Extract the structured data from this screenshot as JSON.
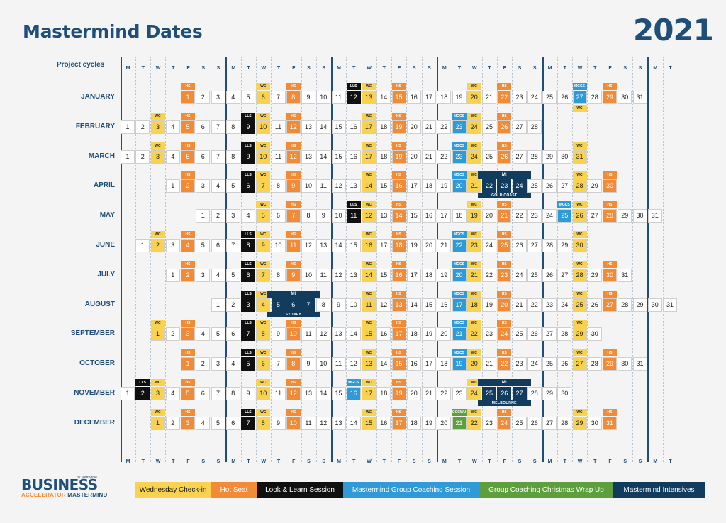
{
  "header": {
    "title": "Mastermind Dates",
    "year": "2021",
    "project_cycles_label": "Project cycles"
  },
  "day_letters": [
    "M",
    "T",
    "W",
    "T",
    "F",
    "S",
    "S"
  ],
  "months": [
    {
      "name": "JANUARY",
      "offset": 4,
      "days": 31,
      "marks": {
        "1": "hs",
        "6": "wc",
        "8": "hs",
        "12": "lls",
        "13": "wc",
        "15": "hs",
        "20": "wc",
        "22": "hs",
        "27": "mgcs",
        "29": "hs"
      },
      "extra_tags": [
        {
          "day": 27,
          "tag": "wc"
        }
      ],
      "mi": null
    },
    {
      "name": "FEBRUARY",
      "offset": 0,
      "days": 28,
      "marks": {
        "3": "wc",
        "5": "hs",
        "9": "lls",
        "10": "wc",
        "12": "hs",
        "17": "wc",
        "19": "hs",
        "23": "mgcs",
        "24": "wc",
        "26": "hs"
      },
      "mi": null
    },
    {
      "name": "MARCH",
      "offset": 0,
      "days": 31,
      "marks": {
        "3": "wc",
        "5": "hs",
        "9": "lls",
        "10": "wc",
        "12": "hs",
        "17": "wc",
        "19": "hs",
        "23": "mgcs",
        "24": "wc",
        "26": "hs",
        "31": "wc"
      },
      "mi": null
    },
    {
      "name": "APRIL",
      "offset": 3,
      "days": 30,
      "marks": {
        "2": "hs",
        "6": "lls",
        "7": "wc",
        "9": "hs",
        "14": "wc",
        "16": "hs",
        "20": "mgcs",
        "21": "wc",
        "28": "wc",
        "30": "hs"
      },
      "mi": {
        "start": 22,
        "end": 24,
        "label": "MI",
        "caption": "GOLD COAST"
      }
    },
    {
      "name": "MAY",
      "offset": 5,
      "days": 31,
      "marks": {
        "5": "wc",
        "7": "hs",
        "11": "lls",
        "12": "wc",
        "14": "hs",
        "19": "wc",
        "21": "hs",
        "25": "mgcs",
        "26": "wc",
        "28": "hs"
      },
      "mi": null
    },
    {
      "name": "JUNE",
      "offset": 1,
      "days": 30,
      "marks": {
        "2": "wc",
        "4": "hs",
        "8": "lls",
        "9": "wc",
        "11": "hs",
        "16": "wc",
        "18": "hs",
        "22": "mgcs",
        "23": "wc",
        "25": "hs",
        "30": "wc"
      },
      "mi": null
    },
    {
      "name": "JULY",
      "offset": 3,
      "days": 31,
      "marks": {
        "2": "hs",
        "6": "lls",
        "7": "wc",
        "9": "hs",
        "14": "wc",
        "16": "hs",
        "20": "mgcs",
        "21": "wc",
        "23": "hs",
        "28": "wc",
        "30": "hs"
      },
      "mi": null
    },
    {
      "name": "AUGUST",
      "offset": 6,
      "days": 31,
      "marks": {
        "3": "lls",
        "4": "wc",
        "11": "wc",
        "13": "hs",
        "17": "mgcs",
        "18": "wc",
        "20": "hs",
        "25": "wc",
        "27": "hs"
      },
      "mi": {
        "start": 5,
        "end": 7,
        "label": "MI",
        "caption": "SYDNEY"
      }
    },
    {
      "name": "SEPTEMBER",
      "offset": 2,
      "days": 30,
      "marks": {
        "1": "wc",
        "3": "hs",
        "7": "lls",
        "8": "wc",
        "10": "hs",
        "15": "wc",
        "17": "hs",
        "21": "mgcs",
        "22": "wc",
        "24": "hs",
        "29": "wc"
      },
      "mi": null
    },
    {
      "name": "OCTOBER",
      "offset": 4,
      "days": 31,
      "marks": {
        "1": "hs",
        "5": "lls",
        "6": "wc",
        "8": "hs",
        "13": "wc",
        "15": "hs",
        "19": "mgcs",
        "20": "wc",
        "22": "hs",
        "27": "wc",
        "29": "hs"
      },
      "mi": null
    },
    {
      "name": "NOVEMBER",
      "offset": 0,
      "days": 30,
      "marks": {
        "2": "lls",
        "3": "wc",
        "5": "hs",
        "10": "wc",
        "12": "hs",
        "16": "mgcs",
        "17": "wc",
        "19": "hs",
        "24": "wc"
      },
      "mi": {
        "start": 25,
        "end": 27,
        "label": "MI",
        "caption": "MELBOURNE"
      }
    },
    {
      "name": "DECEMBER",
      "offset": 2,
      "days": 31,
      "marks": {
        "1": "wc",
        "3": "hs",
        "7": "lls",
        "8": "wc",
        "10": "hs",
        "15": "wc",
        "17": "hs",
        "21": "gccwu",
        "22": "wc",
        "24": "hs",
        "29": "wc",
        "31": "hs"
      },
      "mi": null
    }
  ],
  "tag_labels": {
    "wc": "WC",
    "hs": "HS",
    "lls": "LLS",
    "mgcs": "MGCS",
    "gccwu": "GCCWU"
  },
  "legend": [
    {
      "key": "wc",
      "label": "Wednesday Check-in",
      "color": "#f9d24f",
      "text_color": "#1a1a1a"
    },
    {
      "key": "hs",
      "label": "Hot Seat",
      "color": "#f18b35",
      "text_color": "#ffffff"
    },
    {
      "key": "lls",
      "label": "Look & Learn Session",
      "color": "#101010",
      "text_color": "#ffffff"
    },
    {
      "key": "mgcs",
      "label": "Mastermind Group Coaching Session",
      "color": "#2e9ad7",
      "text_color": "#ffffff"
    },
    {
      "key": "gccwu",
      "label": "Group Coaching Christmas Wrap Up",
      "color": "#5d9f3c",
      "text_color": "#ffffff"
    },
    {
      "key": "mi",
      "label": "Mastermind Intensives",
      "color": "#123c5e",
      "text_color": "#ffffff"
    }
  ],
  "logo": {
    "by": "by Metropole",
    "word1": "BUSINESS",
    "word2a": "ACCELERATOR",
    "word2b": "MASTERMIND"
  }
}
